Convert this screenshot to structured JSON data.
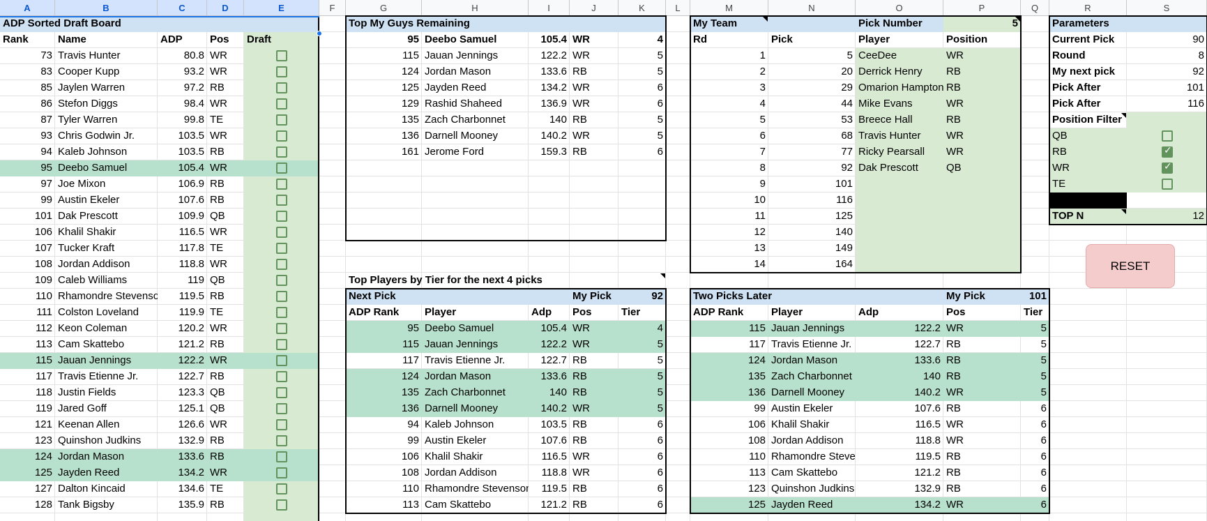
{
  "column_headers": [
    "A",
    "B",
    "C",
    "D",
    "E",
    "F",
    "G",
    "H",
    "I",
    "J",
    "K",
    "L",
    "M",
    "N",
    "O",
    "P",
    "Q",
    "R",
    "S"
  ],
  "colors": {
    "light_green": "#d9ead3",
    "highlight_green": "#b7e1cd",
    "light_blue": "#cfe2f3",
    "checkbox_green": "#62935c",
    "reset_bg": "#f4cccc"
  },
  "draft_board": {
    "title": "ADP Sorted Draft Board",
    "headers": [
      "Rank",
      "Name",
      "ADP",
      "Pos",
      "Draft"
    ],
    "rows": [
      {
        "rank": "73",
        "name": "Travis Hunter",
        "adp": "80.8",
        "pos": "WR",
        "hl": false
      },
      {
        "rank": "83",
        "name": "Cooper Kupp",
        "adp": "93.2",
        "pos": "WR",
        "hl": false
      },
      {
        "rank": "85",
        "name": "Jaylen Warren",
        "adp": "97.2",
        "pos": "RB",
        "hl": false
      },
      {
        "rank": "86",
        "name": "Stefon Diggs",
        "adp": "98.4",
        "pos": "WR",
        "hl": false
      },
      {
        "rank": "87",
        "name": "Tyler Warren",
        "adp": "99.8",
        "pos": "TE",
        "hl": false
      },
      {
        "rank": "93",
        "name": "Chris Godwin Jr.",
        "adp": "103.5",
        "pos": "WR",
        "hl": false
      },
      {
        "rank": "94",
        "name": "Kaleb Johnson",
        "adp": "103.5",
        "pos": "RB",
        "hl": false
      },
      {
        "rank": "95",
        "name": "Deebo Samuel",
        "adp": "105.4",
        "pos": "WR",
        "hl": true
      },
      {
        "rank": "97",
        "name": "Joe Mixon",
        "adp": "106.9",
        "pos": "RB",
        "hl": false
      },
      {
        "rank": "99",
        "name": "Austin Ekeler",
        "adp": "107.6",
        "pos": "RB",
        "hl": false
      },
      {
        "rank": "101",
        "name": "Dak Prescott",
        "adp": "109.9",
        "pos": "QB",
        "hl": false
      },
      {
        "rank": "106",
        "name": "Khalil Shakir",
        "adp": "116.5",
        "pos": "WR",
        "hl": false
      },
      {
        "rank": "107",
        "name": "Tucker Kraft",
        "adp": "117.8",
        "pos": "TE",
        "hl": false
      },
      {
        "rank": "108",
        "name": "Jordan Addison",
        "adp": "118.8",
        "pos": "WR",
        "hl": false
      },
      {
        "rank": "109",
        "name": "Caleb Williams",
        "adp": "119",
        "pos": "QB",
        "hl": false
      },
      {
        "rank": "110",
        "name": "Rhamondre Stevenso",
        "adp": "119.5",
        "pos": "RB",
        "hl": false
      },
      {
        "rank": "111",
        "name": "Colston Loveland",
        "adp": "119.9",
        "pos": "TE",
        "hl": false
      },
      {
        "rank": "112",
        "name": "Keon Coleman",
        "adp": "120.2",
        "pos": "WR",
        "hl": false
      },
      {
        "rank": "113",
        "name": "Cam Skattebo",
        "adp": "121.2",
        "pos": "RB",
        "hl": false
      },
      {
        "rank": "115",
        "name": "Jauan Jennings",
        "adp": "122.2",
        "pos": "WR",
        "hl": true
      },
      {
        "rank": "117",
        "name": "Travis Etienne Jr.",
        "adp": "122.7",
        "pos": "RB",
        "hl": false
      },
      {
        "rank": "118",
        "name": "Justin Fields",
        "adp": "123.3",
        "pos": "QB",
        "hl": false
      },
      {
        "rank": "119",
        "name": "Jared Goff",
        "adp": "125.1",
        "pos": "QB",
        "hl": false
      },
      {
        "rank": "121",
        "name": "Keenan Allen",
        "adp": "126.6",
        "pos": "WR",
        "hl": false
      },
      {
        "rank": "123",
        "name": "Quinshon Judkins",
        "adp": "132.9",
        "pos": "RB",
        "hl": false
      },
      {
        "rank": "124",
        "name": "Jordan Mason",
        "adp": "133.6",
        "pos": "RB",
        "hl": true
      },
      {
        "rank": "125",
        "name": "Jayden Reed",
        "adp": "134.2",
        "pos": "WR",
        "hl": true
      },
      {
        "rank": "127",
        "name": "Dalton Kincaid",
        "adp": "134.6",
        "pos": "TE",
        "hl": false
      },
      {
        "rank": "128",
        "name": "Tank Bigsby",
        "adp": "135.9",
        "pos": "RB",
        "hl": false
      }
    ]
  },
  "top_guys": {
    "title": "Top My Guys Remaining",
    "rows": [
      {
        "rank": "95",
        "name": "Deebo Samuel",
        "adp": "105.4",
        "pos": "WR",
        "tier": "4"
      },
      {
        "rank": "115",
        "name": "Jauan Jennings",
        "adp": "122.2",
        "pos": "WR",
        "tier": "5"
      },
      {
        "rank": "124",
        "name": "Jordan Mason",
        "adp": "133.6",
        "pos": "RB",
        "tier": "5"
      },
      {
        "rank": "125",
        "name": "Jayden Reed",
        "adp": "134.2",
        "pos": "WR",
        "tier": "6"
      },
      {
        "rank": "129",
        "name": "Rashid Shaheed",
        "adp": "136.9",
        "pos": "WR",
        "tier": "6"
      },
      {
        "rank": "135",
        "name": "Zach Charbonnet",
        "adp": "140",
        "pos": "RB",
        "tier": "5"
      },
      {
        "rank": "136",
        "name": "Darnell Mooney",
        "adp": "140.2",
        "pos": "WR",
        "tier": "5"
      },
      {
        "rank": "161",
        "name": "Jerome Ford",
        "adp": "159.3",
        "pos": "RB",
        "tier": "6"
      }
    ]
  },
  "my_team": {
    "title": "My Team",
    "pick_number_label": "Pick Number",
    "pick_number_value": "5",
    "headers": [
      "Rd",
      "Pick",
      "Player",
      "Position"
    ],
    "rows": [
      {
        "rd": "1",
        "pick": "5",
        "player": "CeeDee",
        "pos": "WR"
      },
      {
        "rd": "2",
        "pick": "20",
        "player": "Derrick Henry",
        "pos": "RB"
      },
      {
        "rd": "3",
        "pick": "29",
        "player": "Omarion Hampton",
        "pos": "RB"
      },
      {
        "rd": "4",
        "pick": "44",
        "player": "Mike Evans",
        "pos": "WR"
      },
      {
        "rd": "5",
        "pick": "53",
        "player": "Breece Hall",
        "pos": "RB"
      },
      {
        "rd": "6",
        "pick": "68",
        "player": "Travis Hunter",
        "pos": "WR"
      },
      {
        "rd": "7",
        "pick": "77",
        "player": "Ricky Pearsall",
        "pos": "WR"
      },
      {
        "rd": "8",
        "pick": "92",
        "player": "Dak Prescott",
        "pos": "QB"
      },
      {
        "rd": "9",
        "pick": "101",
        "player": "",
        "pos": ""
      },
      {
        "rd": "10",
        "pick": "116",
        "player": "",
        "pos": ""
      },
      {
        "rd": "11",
        "pick": "125",
        "player": "",
        "pos": ""
      },
      {
        "rd": "12",
        "pick": "140",
        "player": "",
        "pos": ""
      },
      {
        "rd": "13",
        "pick": "149",
        "player": "",
        "pos": ""
      },
      {
        "rd": "14",
        "pick": "164",
        "player": "",
        "pos": ""
      }
    ]
  },
  "parameters": {
    "title": "Parameters",
    "rows": [
      {
        "label": "Current Pick",
        "value": "90"
      },
      {
        "label": "Round",
        "value": "8"
      },
      {
        "label": "My next pick",
        "value": "92"
      },
      {
        "label": "Pick After",
        "value": "101"
      },
      {
        "label": "Pick After",
        "value": "116"
      }
    ],
    "position_filter_label": "Position Filter",
    "filters": [
      {
        "label": "QB",
        "checked": false
      },
      {
        "label": "RB",
        "checked": true
      },
      {
        "label": "WR",
        "checked": true
      },
      {
        "label": "TE",
        "checked": false
      }
    ],
    "top_n_label": "TOP N",
    "top_n_value": "12",
    "reset_label": "RESET"
  },
  "tier_section_title": "Top Players by Tier for the next 4 picks",
  "next_pick": {
    "title": "Next Pick",
    "my_pick_label": "My Pick",
    "my_pick_value": "92",
    "headers": [
      "ADP Rank",
      "Player",
      "Adp",
      "Pos",
      "Tier"
    ],
    "rows": [
      {
        "rank": "95",
        "player": "Deebo Samuel",
        "adp": "105.4",
        "pos": "WR",
        "tier": "4",
        "hl": true
      },
      {
        "rank": "115",
        "player": "Jauan Jennings",
        "adp": "122.2",
        "pos": "WR",
        "tier": "5",
        "hl": true
      },
      {
        "rank": "117",
        "player": "Travis Etienne Jr.",
        "adp": "122.7",
        "pos": "RB",
        "tier": "5",
        "hl": false
      },
      {
        "rank": "124",
        "player": "Jordan Mason",
        "adp": "133.6",
        "pos": "RB",
        "tier": "5",
        "hl": true
      },
      {
        "rank": "135",
        "player": "Zach Charbonnet",
        "adp": "140",
        "pos": "RB",
        "tier": "5",
        "hl": true
      },
      {
        "rank": "136",
        "player": "Darnell Mooney",
        "adp": "140.2",
        "pos": "WR",
        "tier": "5",
        "hl": true
      },
      {
        "rank": "94",
        "player": "Kaleb Johnson",
        "adp": "103.5",
        "pos": "RB",
        "tier": "6",
        "hl": false
      },
      {
        "rank": "99",
        "player": "Austin Ekeler",
        "adp": "107.6",
        "pos": "RB",
        "tier": "6",
        "hl": false
      },
      {
        "rank": "106",
        "player": "Khalil Shakir",
        "adp": "116.5",
        "pos": "WR",
        "tier": "6",
        "hl": false
      },
      {
        "rank": "108",
        "player": "Jordan Addison",
        "adp": "118.8",
        "pos": "WR",
        "tier": "6",
        "hl": false
      },
      {
        "rank": "110",
        "player": "Rhamondre Stevenson",
        "adp": "119.5",
        "pos": "RB",
        "tier": "6",
        "hl": false
      },
      {
        "rank": "113",
        "player": "Cam Skattebo",
        "adp": "121.2",
        "pos": "RB",
        "tier": "6",
        "hl": false
      }
    ]
  },
  "two_picks_later": {
    "title": "Two Picks Later",
    "my_pick_label": "My Pick",
    "my_pick_value": "101",
    "headers": [
      "ADP Rank",
      "Player",
      "Adp",
      "Pos",
      "Tier"
    ],
    "rows": [
      {
        "rank": "115",
        "player": "Jauan Jennings",
        "adp": "122.2",
        "pos": "WR",
        "tier": "5",
        "hl": true
      },
      {
        "rank": "117",
        "player": "Travis Etienne Jr.",
        "adp": "122.7",
        "pos": "RB",
        "tier": "5",
        "hl": false
      },
      {
        "rank": "124",
        "player": "Jordan Mason",
        "adp": "133.6",
        "pos": "RB",
        "tier": "5",
        "hl": true
      },
      {
        "rank": "135",
        "player": "Zach Charbonnet",
        "adp": "140",
        "pos": "RB",
        "tier": "5",
        "hl": true
      },
      {
        "rank": "136",
        "player": "Darnell Mooney",
        "adp": "140.2",
        "pos": "WR",
        "tier": "5",
        "hl": true
      },
      {
        "rank": "99",
        "player": "Austin Ekeler",
        "adp": "107.6",
        "pos": "RB",
        "tier": "6",
        "hl": false
      },
      {
        "rank": "106",
        "player": "Khalil Shakir",
        "adp": "116.5",
        "pos": "WR",
        "tier": "6",
        "hl": false
      },
      {
        "rank": "108",
        "player": "Jordan Addison",
        "adp": "118.8",
        "pos": "WR",
        "tier": "6",
        "hl": false
      },
      {
        "rank": "110",
        "player": "Rhamondre Steve",
        "adp": "119.5",
        "pos": "RB",
        "tier": "6",
        "hl": false
      },
      {
        "rank": "113",
        "player": "Cam Skattebo",
        "adp": "121.2",
        "pos": "RB",
        "tier": "6",
        "hl": false
      },
      {
        "rank": "123",
        "player": "Quinshon Judkins",
        "adp": "132.9",
        "pos": "RB",
        "tier": "6",
        "hl": false
      },
      {
        "rank": "125",
        "player": "Jayden Reed",
        "adp": "134.2",
        "pos": "WR",
        "tier": "6",
        "hl": true
      }
    ]
  }
}
